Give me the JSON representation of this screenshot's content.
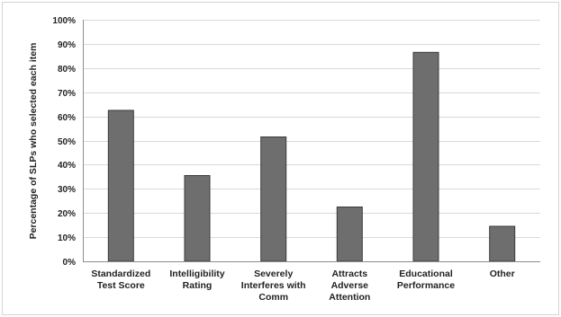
{
  "chart_data": {
    "type": "bar",
    "title": "",
    "xlabel": "",
    "ylabel": "Percentage of SLPs who selected each item",
    "categories": [
      [
        "Standardized",
        "Test Score"
      ],
      [
        "Intelligibility",
        "Rating"
      ],
      [
        "Severely",
        "Interferes with",
        "Comm"
      ],
      [
        "Attracts",
        "Adverse",
        "Attention"
      ],
      [
        "Educational",
        "Performance"
      ],
      [
        "Other"
      ]
    ],
    "values": [
      62.5,
      35.5,
      51.5,
      22.5,
      86.5,
      14.5
    ],
    "value_unit": "percent",
    "ylim": [
      0,
      100
    ],
    "yticks": [
      "0%",
      "10%",
      "20%",
      "30%",
      "40%",
      "50%",
      "60%",
      "70%",
      "80%",
      "90%",
      "100%"
    ],
    "grid": true,
    "legend": "none",
    "bar_color": "#6e6e6e",
    "bar_edge_color": "#3a3a3a"
  }
}
